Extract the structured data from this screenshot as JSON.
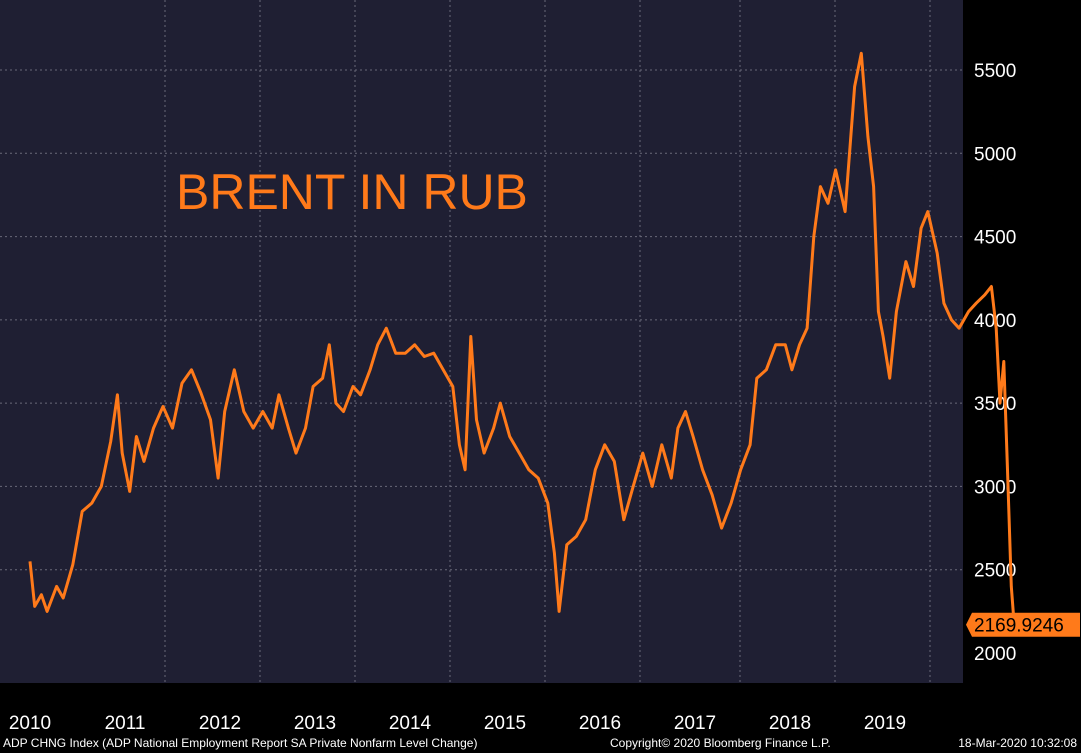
{
  "chart_data": {
    "type": "line",
    "title": "BRENT IN RUB",
    "xlabel": "",
    "ylabel": "",
    "ylim": [
      1800,
      5800
    ],
    "yticks": [
      2000,
      2500,
      3000,
      3500,
      4000,
      4500,
      5000,
      5500
    ],
    "xticks": [
      "2010",
      "2011",
      "2012",
      "2013",
      "2014",
      "2015",
      "2016",
      "2017",
      "2018",
      "2019"
    ],
    "grid": true,
    "last_value_label": "2169.9246",
    "colors": {
      "line": "#ff7a1a",
      "plot_bg": "#1f1f33",
      "axis_bg": "#000000",
      "text": "#ffffff"
    },
    "series": [
      {
        "points": [
          [
            2010.0,
            2550
          ],
          [
            2010.05,
            2280
          ],
          [
            2010.12,
            2350
          ],
          [
            2010.18,
            2250
          ],
          [
            2010.28,
            2400
          ],
          [
            2010.35,
            2330
          ],
          [
            2010.45,
            2530
          ],
          [
            2010.55,
            2850
          ],
          [
            2010.65,
            2900
          ],
          [
            2010.75,
            3000
          ],
          [
            2010.85,
            3270
          ],
          [
            2010.92,
            3550
          ],
          [
            2010.97,
            3200
          ],
          [
            2011.05,
            2970
          ],
          [
            2011.12,
            3300
          ],
          [
            2011.2,
            3150
          ],
          [
            2011.3,
            3350
          ],
          [
            2011.4,
            3480
          ],
          [
            2011.5,
            3350
          ],
          [
            2011.6,
            3620
          ],
          [
            2011.7,
            3700
          ],
          [
            2011.8,
            3560
          ],
          [
            2011.9,
            3400
          ],
          [
            2011.98,
            3050
          ],
          [
            2012.05,
            3450
          ],
          [
            2012.15,
            3700
          ],
          [
            2012.25,
            3450
          ],
          [
            2012.35,
            3350
          ],
          [
            2012.45,
            3450
          ],
          [
            2012.55,
            3350
          ],
          [
            2012.62,
            3550
          ],
          [
            2012.72,
            3350
          ],
          [
            2012.8,
            3200
          ],
          [
            2012.9,
            3350
          ],
          [
            2012.98,
            3600
          ],
          [
            2013.08,
            3650
          ],
          [
            2013.15,
            3850
          ],
          [
            2013.22,
            3500
          ],
          [
            2013.3,
            3450
          ],
          [
            2013.4,
            3600
          ],
          [
            2013.48,
            3550
          ],
          [
            2013.58,
            3700
          ],
          [
            2013.66,
            3850
          ],
          [
            2013.75,
            3950
          ],
          [
            2013.85,
            3800
          ],
          [
            2013.95,
            3800
          ],
          [
            2014.05,
            3850
          ],
          [
            2014.15,
            3780
          ],
          [
            2014.25,
            3800
          ],
          [
            2014.35,
            3700
          ],
          [
            2014.45,
            3600
          ],
          [
            2014.52,
            3250
          ],
          [
            2014.58,
            3100
          ],
          [
            2014.64,
            3900
          ],
          [
            2014.7,
            3400
          ],
          [
            2014.78,
            3200
          ],
          [
            2014.88,
            3350
          ],
          [
            2014.95,
            3500
          ],
          [
            2015.05,
            3300
          ],
          [
            2015.15,
            3200
          ],
          [
            2015.25,
            3100
          ],
          [
            2015.35,
            3050
          ],
          [
            2015.45,
            2900
          ],
          [
            2015.52,
            2600
          ],
          [
            2015.57,
            2250
          ],
          [
            2015.65,
            2650
          ],
          [
            2015.75,
            2700
          ],
          [
            2015.85,
            2800
          ],
          [
            2015.95,
            3100
          ],
          [
            2016.05,
            3250
          ],
          [
            2016.15,
            3150
          ],
          [
            2016.25,
            2800
          ],
          [
            2016.35,
            3000
          ],
          [
            2016.45,
            3200
          ],
          [
            2016.55,
            3000
          ],
          [
            2016.65,
            3250
          ],
          [
            2016.75,
            3050
          ],
          [
            2016.82,
            3350
          ],
          [
            2016.9,
            3450
          ],
          [
            2016.98,
            3300
          ],
          [
            2017.08,
            3100
          ],
          [
            2017.18,
            2950
          ],
          [
            2017.28,
            2750
          ],
          [
            2017.38,
            2900
          ],
          [
            2017.48,
            3100
          ],
          [
            2017.58,
            3250
          ],
          [
            2017.65,
            3650
          ],
          [
            2017.75,
            3700
          ],
          [
            2017.85,
            3850
          ],
          [
            2017.95,
            3850
          ],
          [
            2018.02,
            3700
          ],
          [
            2018.1,
            3850
          ],
          [
            2018.18,
            3950
          ],
          [
            2018.25,
            4500
          ],
          [
            2018.32,
            4800
          ],
          [
            2018.4,
            4700
          ],
          [
            2018.48,
            4900
          ],
          [
            2018.58,
            4650
          ],
          [
            2018.68,
            5400
          ],
          [
            2018.75,
            5600
          ],
          [
            2018.82,
            5100
          ],
          [
            2018.88,
            4800
          ],
          [
            2018.93,
            4050
          ],
          [
            2018.98,
            3900
          ],
          [
            2019.05,
            3650
          ],
          [
            2019.12,
            4050
          ],
          [
            2019.22,
            4350
          ],
          [
            2019.3,
            4200
          ],
          [
            2019.38,
            4550
          ],
          [
            2019.45,
            4650
          ],
          [
            2019.55,
            4400
          ],
          [
            2019.62,
            4100
          ],
          [
            2019.7,
            4000
          ],
          [
            2019.78,
            3950
          ],
          [
            2019.88,
            4050
          ],
          [
            2019.96,
            4100
          ],
          [
            2020.05,
            4150
          ],
          [
            2020.12,
            4200
          ],
          [
            2020.17,
            3950
          ],
          [
            2020.21,
            3500
          ],
          [
            2020.25,
            3750
          ],
          [
            2020.29,
            3100
          ],
          [
            2020.33,
            2400
          ],
          [
            2020.36,
            2170
          ]
        ]
      }
    ]
  },
  "footer": {
    "index_text": "ADP CHNG Index (ADP National Employment Report SA Private Nonfarm Level Change)",
    "copyright": "Copyright© 2020 Bloomberg Finance L.P.",
    "timestamp": "18-Mar-2020 10:32:08"
  }
}
